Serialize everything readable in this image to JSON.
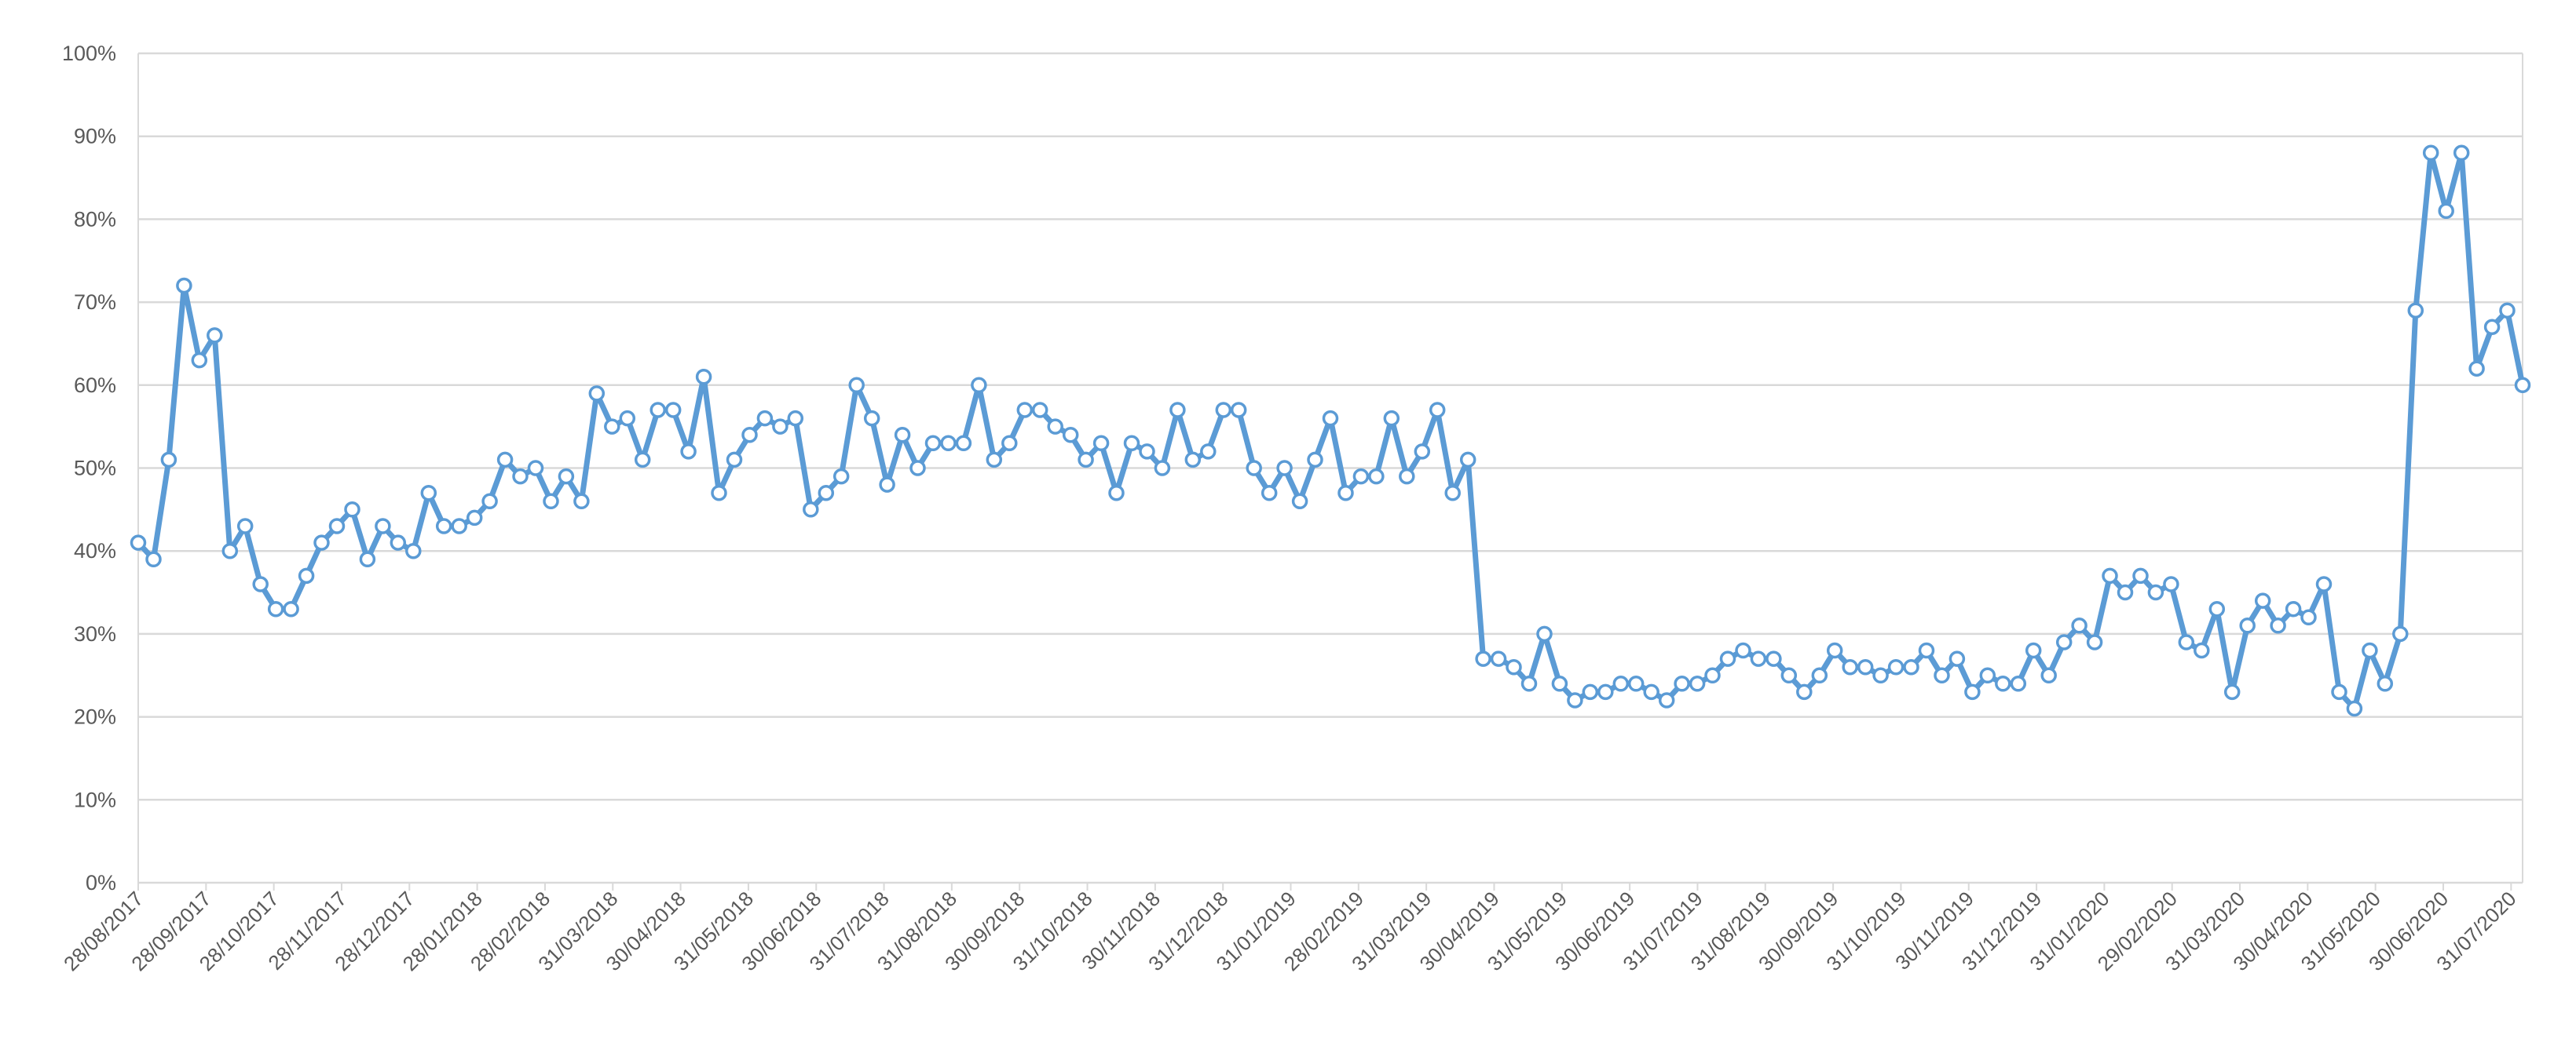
{
  "chart_data": {
    "type": "line",
    "title": "",
    "xlabel": "",
    "ylabel": "",
    "ylim": [
      0,
      1
    ],
    "y_format": "percent",
    "grid": "horizontal",
    "series_color": "#5B9BD5",
    "marker_fill": "#ffffff",
    "gridline_color": "#D9D9D9",
    "text_color": "#595959",
    "y_ticks": [
      "0%",
      "10%",
      "20%",
      "30%",
      "40%",
      "50%",
      "60%",
      "70%",
      "80%",
      "90%",
      "100%"
    ],
    "x_tick_labels": [
      "28/08/2017",
      "28/09/2017",
      "28/10/2017",
      "28/11/2017",
      "28/12/2017",
      "28/01/2018",
      "28/02/2018",
      "31/03/2018",
      "30/04/2018",
      "31/05/2018",
      "30/06/2018",
      "31/07/2018",
      "31/08/2018",
      "30/09/2018",
      "31/10/2018",
      "30/11/2018",
      "31/12/2018",
      "31/01/2019",
      "28/02/2019",
      "31/03/2019",
      "30/04/2019",
      "31/05/2019",
      "30/06/2019",
      "31/07/2019",
      "31/08/2019",
      "30/09/2019",
      "31/10/2019",
      "30/11/2019",
      "31/12/2019",
      "31/01/2020",
      "29/02/2020",
      "31/03/2020",
      "30/04/2020",
      "31/05/2020",
      "30/06/2020",
      "31/07/2020"
    ],
    "series": [
      {
        "values": [
          0.41,
          0.39,
          0.51,
          0.72,
          0.63,
          0.66,
          0.4,
          0.43,
          0.36,
          0.33,
          0.33,
          0.37,
          0.41,
          0.43,
          0.45,
          0.39,
          0.43,
          0.41,
          0.4,
          0.47,
          0.43,
          0.43,
          0.44,
          0.46,
          0.51,
          0.49,
          0.5,
          0.46,
          0.49,
          0.46,
          0.59,
          0.55,
          0.56,
          0.51,
          0.57,
          0.57,
          0.52,
          0.61,
          0.47,
          0.51,
          0.54,
          0.56,
          0.55,
          0.56,
          0.45,
          0.47,
          0.49,
          0.6,
          0.56,
          0.48,
          0.54,
          0.5,
          0.53,
          0.53,
          0.53,
          0.6,
          0.51,
          0.53,
          0.57,
          0.57,
          0.55,
          0.54,
          0.51,
          0.53,
          0.47,
          0.53,
          0.52,
          0.5,
          0.57,
          0.51,
          0.52,
          0.57,
          0.57,
          0.5,
          0.47,
          0.5,
          0.46,
          0.51,
          0.56,
          0.47,
          0.49,
          0.49,
          0.56,
          0.49,
          0.52,
          0.57,
          0.47,
          0.51,
          0.27,
          0.27,
          0.26,
          0.24,
          0.3,
          0.24,
          0.22,
          0.23,
          0.23,
          0.24,
          0.24,
          0.23,
          0.22,
          0.24,
          0.24,
          0.25,
          0.27,
          0.28,
          0.27,
          0.27,
          0.25,
          0.23,
          0.25,
          0.28,
          0.26,
          0.26,
          0.25,
          0.26,
          0.26,
          0.28,
          0.25,
          0.27,
          0.23,
          0.25,
          0.24,
          0.24,
          0.28,
          0.25,
          0.29,
          0.31,
          0.29,
          0.37,
          0.35,
          0.37,
          0.35,
          0.36,
          0.29,
          0.28,
          0.33,
          0.23,
          0.31,
          0.34,
          0.31,
          0.33,
          0.32,
          0.36,
          0.23,
          0.21,
          0.28,
          0.24,
          0.3,
          0.69,
          0.88,
          0.81,
          0.88,
          0.62,
          0.67,
          0.69,
          0.6
        ]
      }
    ]
  }
}
